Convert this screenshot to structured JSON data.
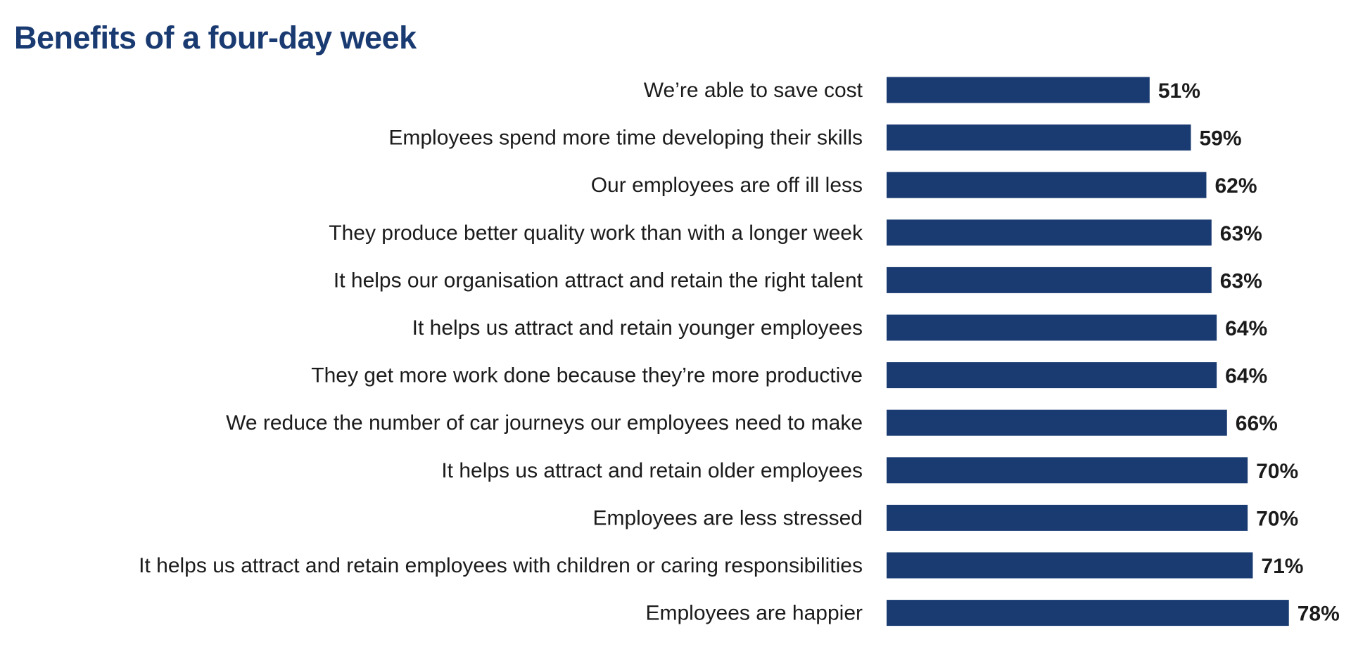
{
  "chart_data": {
    "type": "bar",
    "orientation": "horizontal",
    "title": "Benefits of a four-day week",
    "xlabel": "",
    "ylabel": "",
    "categories": [
      "We’re able to save cost",
      "Employees spend more time developing their skills",
      "Our employees are off ill less",
      "They produce better quality work than with a longer week",
      "It helps our organisation attract and retain the right talent",
      "It helps us attract and retain younger employees",
      "They get more work done because they’re more productive",
      "We reduce the number of car journeys our employees need to make",
      "It helps us attract and retain older employees",
      "Employees are less stressed",
      "It helps us attract and retain employees with children or caring responsibilities",
      "Employees are happier"
    ],
    "values": [
      51,
      59,
      62,
      63,
      63,
      64,
      64,
      66,
      70,
      70,
      71,
      78
    ],
    "value_labels": [
      "51%",
      "59%",
      "62%",
      "63%",
      "63%",
      "64%",
      "64%",
      "66%",
      "70%",
      "70%",
      "71%",
      "78%"
    ],
    "xlim": [
      0,
      100
    ],
    "grid": false,
    "legend": "none",
    "colors": {
      "bar": "#1a3b72",
      "title": "#1a3b72",
      "text": "#1b1b1b"
    }
  }
}
